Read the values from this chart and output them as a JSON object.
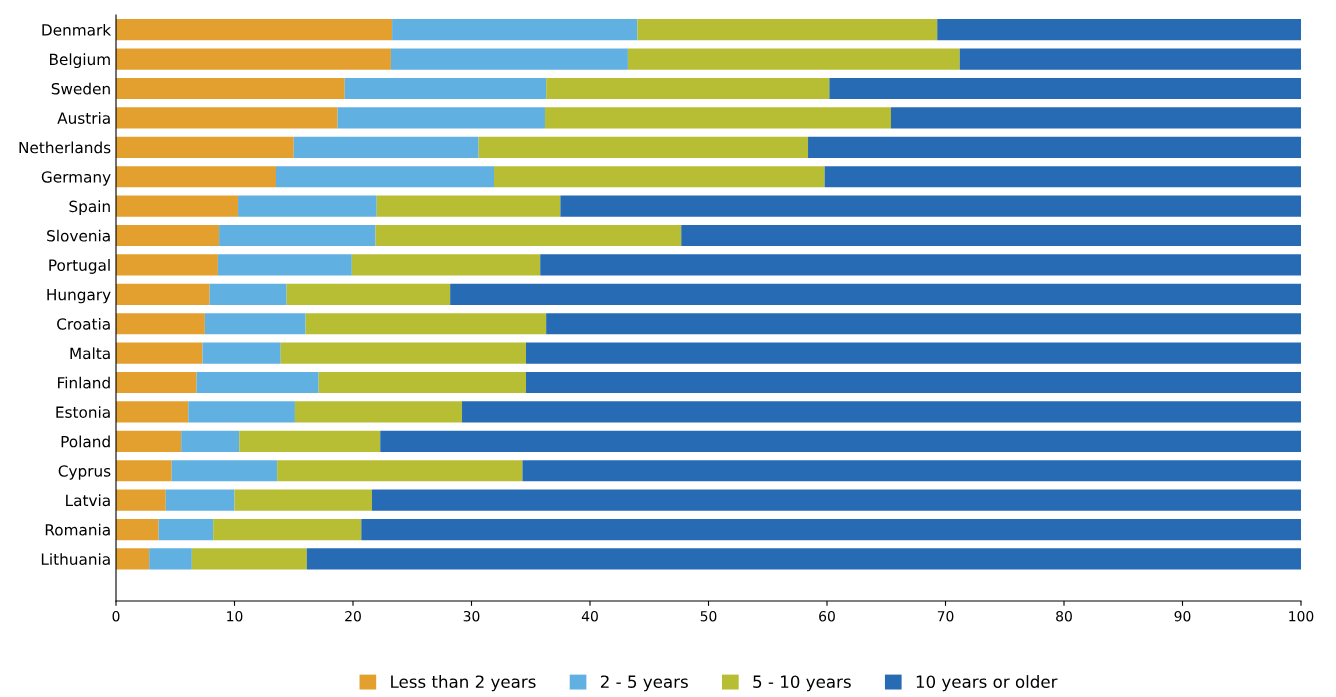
{
  "chart_data": {
    "type": "bar",
    "orientation": "horizontal",
    "stacked": true,
    "categories": [
      "Denmark",
      "Belgium",
      "Sweden",
      "Austria",
      "Netherlands",
      "Germany",
      "Spain",
      "Slovenia",
      "Portugal",
      "Hungary",
      "Croatia",
      "Malta",
      "Finland",
      "Estonia",
      "Poland",
      "Cyprus",
      "Latvia",
      "Romania",
      "Lithuania"
    ],
    "series": [
      {
        "name": "Less than 2 years",
        "color": "#e3a02e",
        "values": [
          23.3,
          23.2,
          19.3,
          18.7,
          15.0,
          13.5,
          10.3,
          8.7,
          8.6,
          7.9,
          7.5,
          7.3,
          6.8,
          6.1,
          5.5,
          4.7,
          4.2,
          3.6,
          2.8
        ]
      },
      {
        "name": "2 - 5 years",
        "color": "#61b0e2",
        "values": [
          20.7,
          20.0,
          17.0,
          17.5,
          15.6,
          18.4,
          11.7,
          13.2,
          11.3,
          6.5,
          8.5,
          6.6,
          10.3,
          9.0,
          4.9,
          8.9,
          5.8,
          4.6,
          3.6
        ]
      },
      {
        "name": "5 - 10 years",
        "color": "#b7be33",
        "values": [
          25.3,
          28.0,
          23.9,
          29.2,
          27.8,
          27.9,
          15.5,
          25.8,
          15.9,
          13.8,
          20.3,
          20.7,
          17.5,
          14.1,
          11.9,
          20.7,
          11.6,
          12.5,
          9.7
        ]
      },
      {
        "name": "10 years or older",
        "color": "#276bb5",
        "values": [
          30.7,
          28.8,
          39.8,
          34.6,
          41.6,
          40.2,
          62.5,
          52.3,
          64.2,
          71.8,
          63.7,
          65.4,
          65.4,
          70.8,
          77.7,
          65.7,
          78.4,
          79.3,
          83.9
        ]
      }
    ],
    "xlim": [
      0,
      100
    ],
    "xticks": [
      0,
      10,
      20,
      30,
      40,
      50,
      60,
      70,
      80,
      90,
      100
    ],
    "grid": false,
    "legend": "bottom"
  }
}
